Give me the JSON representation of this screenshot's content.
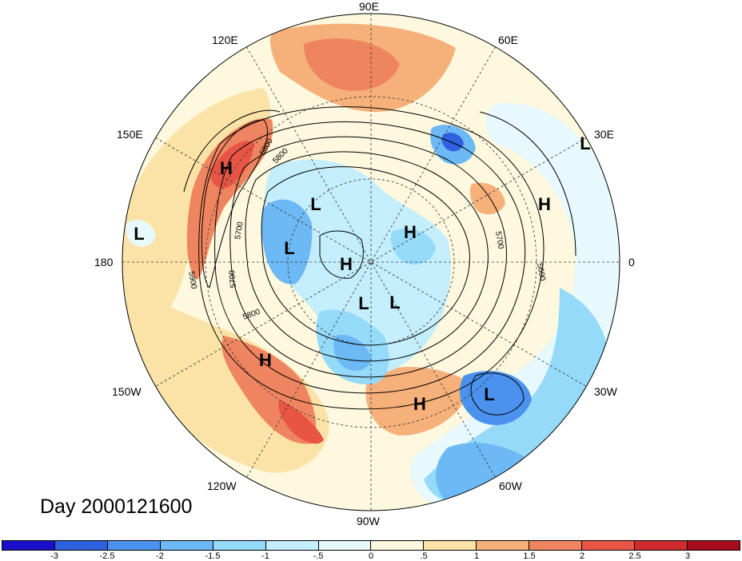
{
  "title": "Day 2000121600",
  "lon_labels": [
    {
      "text": "90E",
      "name": "lon-label-90e"
    },
    {
      "text": "60E",
      "name": "lon-label-60e"
    },
    {
      "text": "120E",
      "name": "lon-label-120e"
    },
    {
      "text": "30E",
      "name": "lon-label-30e"
    },
    {
      "text": "150E",
      "name": "lon-label-150e"
    },
    {
      "text": "180",
      "name": "lon-label-180"
    },
    {
      "text": "0",
      "name": "lon-label-0"
    },
    {
      "text": "150W",
      "name": "lon-label-150w"
    },
    {
      "text": "30W",
      "name": "lon-label-30w"
    },
    {
      "text": "120W",
      "name": "lon-label-120w"
    },
    {
      "text": "60W",
      "name": "lon-label-60w"
    },
    {
      "text": "90W",
      "name": "lon-label-90w"
    }
  ],
  "pressure_centers": [
    "H",
    "H",
    "L",
    "L",
    "H",
    "L",
    "H",
    "L",
    "L",
    "H",
    "H",
    "L",
    "L"
  ],
  "contour_labels": [
    "5800",
    "5700",
    "5700",
    "5900",
    "5700",
    "5800",
    "5600",
    "5800"
  ],
  "colorbar": {
    "colors": [
      "#1a0fc8",
      "#2e60e0",
      "#4b91ee",
      "#6db9f5",
      "#96dafa",
      "#c4eefc",
      "#e8f9fd",
      "#fdf8de",
      "#fbe3a7",
      "#f6b07a",
      "#ef8560",
      "#e85545",
      "#cf2a2e",
      "#a80b1e"
    ],
    "ticks": [
      "-3",
      "-2.5",
      "-2",
      "-1.5",
      "-1",
      "-.5",
      "0",
      ".5",
      "1",
      "1.5",
      "2",
      "2.5",
      "3"
    ]
  }
}
